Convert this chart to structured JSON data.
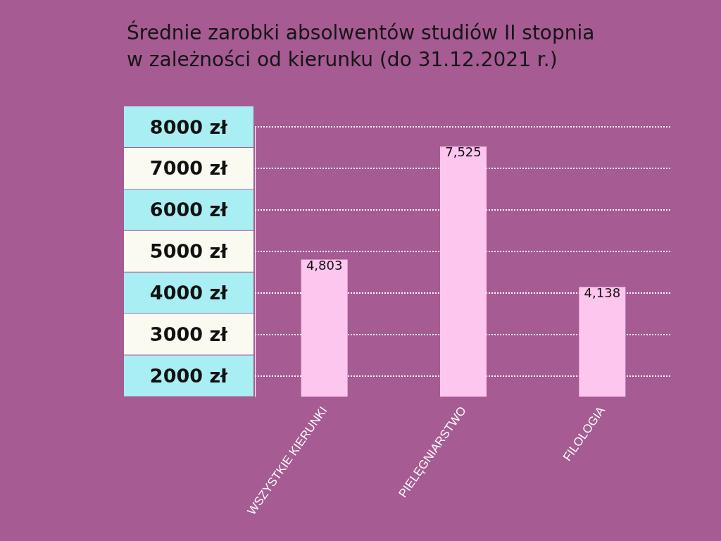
{
  "chart_data": {
    "type": "bar",
    "title": "Średnie zarobki absolwentów studiów II stopnia\nw zależności od kierunku (do 31.12.2021 r.)",
    "categories": [
      "WSZYSTKIE KIERUNKI",
      "PIELĘGNIARSTWO",
      "FILOLOGIA"
    ],
    "values": [
      4803,
      7525,
      4138
    ],
    "value_labels": [
      "4,803",
      "7,525",
      "4,138"
    ],
    "color": "#fcc6ee",
    "ylim": [
      1500,
      8000
    ],
    "yticks": [
      {
        "value": 2000,
        "label": "2000 zł"
      },
      {
        "value": 3000,
        "label": "3000 zł"
      },
      {
        "value": 4000,
        "label": "4000 zł"
      },
      {
        "value": 5000,
        "label": "5000 zł"
      },
      {
        "value": 6000,
        "label": "6000 zł"
      },
      {
        "value": 7000,
        "label": "7000 zł"
      },
      {
        "value": 8000,
        "label": "8000 zł"
      }
    ],
    "grid": "y"
  }
}
